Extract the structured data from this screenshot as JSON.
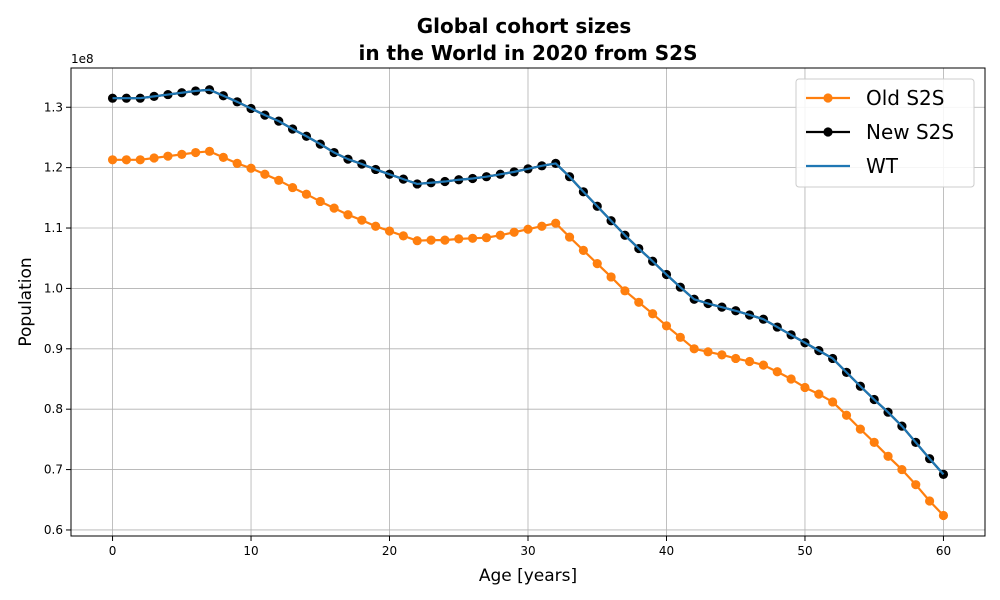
{
  "chart_data": {
    "type": "line",
    "title": [
      "Global cohort sizes",
      "in the World in 2020 from S2S"
    ],
    "xlabel": "Age [years]",
    "ylabel": "Population",
    "y_offset_label": "1e8",
    "xlim": [
      -3,
      63
    ],
    "ylim": [
      0.59,
      1.365
    ],
    "x_ticks": [
      0,
      10,
      20,
      30,
      40,
      50,
      60
    ],
    "y_ticks": [
      0.6,
      0.7,
      0.8,
      0.9,
      1.0,
      1.1,
      1.2,
      1.3
    ],
    "y_tick_labels": [
      "0.6",
      "0.7",
      "0.8",
      "0.9",
      "1.0",
      "1.1",
      "1.2",
      "1.3"
    ],
    "grid": true,
    "legend_position": "top-right",
    "x": [
      0,
      1,
      2,
      3,
      4,
      5,
      6,
      7,
      8,
      9,
      10,
      11,
      12,
      13,
      14,
      15,
      16,
      17,
      18,
      19,
      20,
      21,
      22,
      23,
      24,
      25,
      26,
      27,
      28,
      29,
      30,
      31,
      32,
      33,
      34,
      35,
      36,
      37,
      38,
      39,
      40,
      41,
      42,
      43,
      44,
      45,
      46,
      47,
      48,
      49,
      50,
      51,
      52,
      53,
      54,
      55,
      56,
      57,
      58,
      59,
      60
    ],
    "series": [
      {
        "name": "Old S2S",
        "color": "#ff7f0e",
        "marker": "circle",
        "values": [
          1.213,
          1.213,
          1.213,
          1.216,
          1.219,
          1.222,
          1.225,
          1.227,
          1.217,
          1.207,
          1.199,
          1.189,
          1.179,
          1.167,
          1.156,
          1.144,
          1.133,
          1.122,
          1.113,
          1.103,
          1.095,
          1.087,
          1.079,
          1.08,
          1.08,
          1.082,
          1.083,
          1.084,
          1.088,
          1.093,
          1.098,
          1.103,
          1.108,
          1.085,
          1.063,
          1.041,
          1.019,
          0.996,
          0.977,
          0.958,
          0.938,
          0.919,
          0.9,
          0.895,
          0.89,
          0.884,
          0.879,
          0.873,
          0.862,
          0.85,
          0.836,
          0.825,
          0.812,
          0.79,
          0.767,
          0.745,
          0.722,
          0.7,
          0.675,
          0.648,
          0.624
        ]
      },
      {
        "name": "New S2S",
        "color": "#000000",
        "marker": "circle",
        "values": [
          1.315,
          1.315,
          1.315,
          1.318,
          1.321,
          1.324,
          1.327,
          1.329,
          1.319,
          1.309,
          1.298,
          1.287,
          1.277,
          1.264,
          1.252,
          1.239,
          1.225,
          1.214,
          1.206,
          1.197,
          1.189,
          1.181,
          1.173,
          1.175,
          1.177,
          1.18,
          1.182,
          1.185,
          1.189,
          1.193,
          1.198,
          1.203,
          1.207,
          1.185,
          1.16,
          1.136,
          1.112,
          1.088,
          1.066,
          1.045,
          1.023,
          1.002,
          0.982,
          0.975,
          0.969,
          0.963,
          0.956,
          0.949,
          0.936,
          0.923,
          0.91,
          0.897,
          0.884,
          0.861,
          0.838,
          0.816,
          0.795,
          0.772,
          0.745,
          0.718,
          0.692
        ]
      },
      {
        "name": "WT",
        "color": "#1f77b4",
        "marker": "none",
        "values": [
          1.315,
          1.315,
          1.315,
          1.318,
          1.321,
          1.324,
          1.327,
          1.329,
          1.319,
          1.309,
          1.298,
          1.287,
          1.277,
          1.264,
          1.252,
          1.239,
          1.225,
          1.214,
          1.206,
          1.197,
          1.189,
          1.181,
          1.173,
          1.175,
          1.177,
          1.18,
          1.182,
          1.185,
          1.189,
          1.193,
          1.198,
          1.203,
          1.207,
          1.185,
          1.16,
          1.136,
          1.112,
          1.088,
          1.066,
          1.045,
          1.023,
          1.002,
          0.982,
          0.975,
          0.969,
          0.963,
          0.956,
          0.949,
          0.936,
          0.923,
          0.91,
          0.897,
          0.884,
          0.861,
          0.838,
          0.816,
          0.795,
          0.772,
          0.745,
          0.718,
          0.692
        ]
      }
    ]
  }
}
